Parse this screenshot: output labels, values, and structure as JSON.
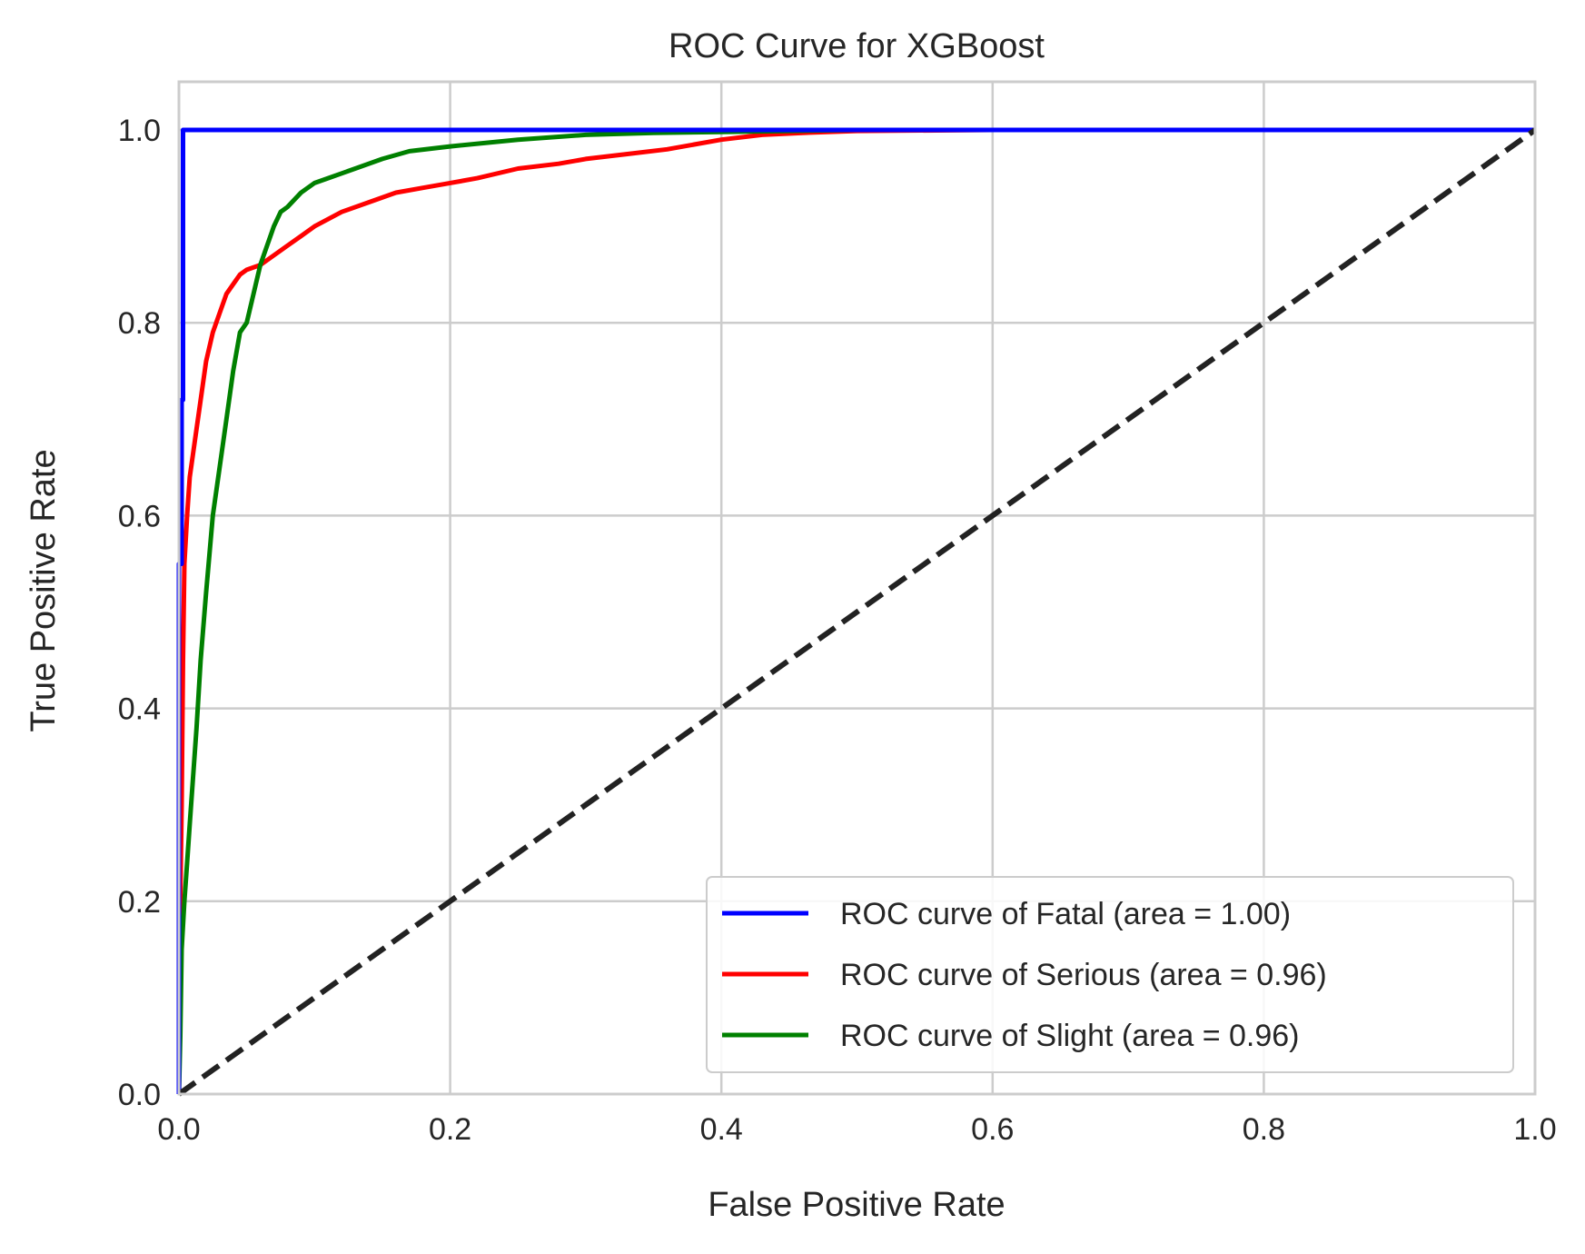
{
  "chart_data": {
    "type": "line",
    "title": "ROC Curve for XGBoost",
    "xlabel": "False Positive Rate",
    "ylabel": "True Positive Rate",
    "xlim": [
      0.0,
      1.0
    ],
    "ylim": [
      0.0,
      1.05
    ],
    "xticks": [
      0.0,
      0.2,
      0.4,
      0.6,
      0.8,
      1.0
    ],
    "yticks": [
      0.0,
      0.2,
      0.4,
      0.6,
      0.8,
      1.0
    ],
    "xtick_labels": [
      "0.0",
      "0.2",
      "0.4",
      "0.6",
      "0.8",
      "1.0"
    ],
    "ytick_labels": [
      "0.0",
      "0.2",
      "0.4",
      "0.6",
      "0.8",
      "1.0"
    ],
    "grid": true,
    "legend_position": "lower right",
    "series": [
      {
        "name": "ROC curve of Fatal (area = 1.00)",
        "color": "#0000ff",
        "x": [
          0.0,
          0.0,
          0.002,
          0.002,
          0.003,
          0.003,
          0.2,
          0.2,
          1.0
        ],
        "y": [
          0.0,
          0.55,
          0.55,
          0.72,
          0.72,
          1.0,
          1.0,
          1.0,
          1.0
        ]
      },
      {
        "name": "ROC curve of Serious (area = 0.96)",
        "color": "#ff0000",
        "x": [
          0.0,
          0.001,
          0.002,
          0.003,
          0.004,
          0.006,
          0.008,
          0.01,
          0.013,
          0.016,
          0.02,
          0.025,
          0.03,
          0.035,
          0.04,
          0.045,
          0.05,
          0.06,
          0.07,
          0.08,
          0.09,
          0.1,
          0.12,
          0.14,
          0.16,
          0.18,
          0.2,
          0.22,
          0.25,
          0.28,
          0.3,
          0.33,
          0.36,
          0.38,
          0.4,
          0.43,
          0.46,
          0.5,
          0.6,
          0.7,
          0.8,
          1.0
        ],
        "y": [
          0.0,
          0.2,
          0.3,
          0.45,
          0.55,
          0.6,
          0.64,
          0.66,
          0.69,
          0.72,
          0.76,
          0.79,
          0.81,
          0.83,
          0.84,
          0.85,
          0.855,
          0.86,
          0.87,
          0.88,
          0.89,
          0.9,
          0.915,
          0.925,
          0.935,
          0.94,
          0.945,
          0.95,
          0.96,
          0.965,
          0.97,
          0.975,
          0.98,
          0.985,
          0.99,
          0.995,
          0.997,
          0.999,
          1.0,
          1.0,
          1.0,
          1.0
        ]
      },
      {
        "name": "ROC curve of Slight (area = 0.96)",
        "color": "#008000",
        "x": [
          0.0,
          0.001,
          0.002,
          0.004,
          0.006,
          0.008,
          0.01,
          0.013,
          0.016,
          0.02,
          0.025,
          0.03,
          0.035,
          0.04,
          0.045,
          0.05,
          0.055,
          0.06,
          0.065,
          0.07,
          0.075,
          0.08,
          0.09,
          0.1,
          0.11,
          0.13,
          0.15,
          0.17,
          0.2,
          0.25,
          0.3,
          0.35,
          0.4,
          0.45,
          0.5,
          0.55,
          0.6,
          0.8,
          1.0
        ],
        "y": [
          0.0,
          0.06,
          0.15,
          0.2,
          0.24,
          0.28,
          0.32,
          0.38,
          0.45,
          0.52,
          0.6,
          0.65,
          0.7,
          0.75,
          0.79,
          0.8,
          0.83,
          0.86,
          0.88,
          0.9,
          0.915,
          0.92,
          0.935,
          0.945,
          0.95,
          0.96,
          0.97,
          0.978,
          0.983,
          0.99,
          0.995,
          0.997,
          0.998,
          0.999,
          1.0,
          1.0,
          1.0,
          1.0,
          1.0
        ]
      },
      {
        "name": "",
        "color": "#222222",
        "dashed": true,
        "x": [
          0.0,
          1.0
        ],
        "y": [
          0.0,
          1.0
        ]
      }
    ]
  }
}
